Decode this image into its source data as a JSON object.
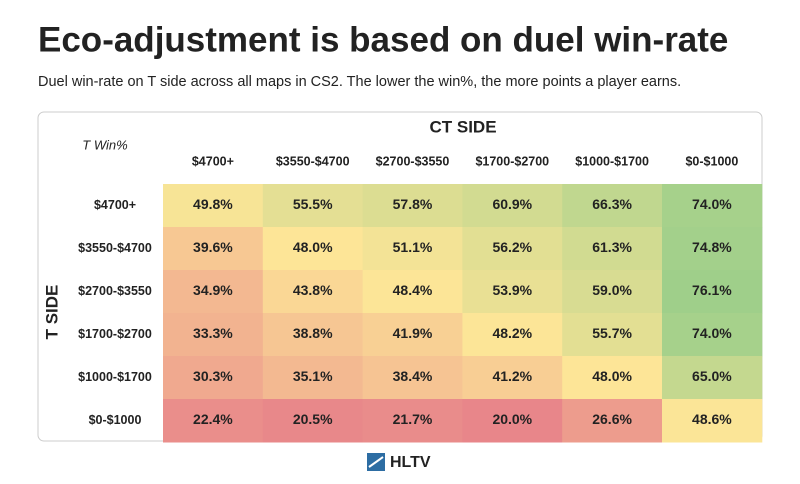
{
  "chart_data": {
    "type": "heatmap",
    "title": "Eco-adjustment is based on duel win-rate",
    "subtitle": "Duel win-rate on T side across all maps in CS2. The lower the win%, the more points a player earns.",
    "x_axis_label": "CT SIDE",
    "y_axis_label": "T SIDE",
    "corner_label": "T Win%",
    "footer": "HLTV",
    "x_categories": [
      "$4700+",
      "$3550-$4700",
      "$2700-$3550",
      "$1700-$2700",
      "$1000-$1700",
      "$0-$1000"
    ],
    "y_categories": [
      "$4700+",
      "$3550-$4700",
      "$2700-$3550",
      "$1700-$2700",
      "$1000-$1700",
      "$0-$1000"
    ],
    "values": [
      [
        49.8,
        55.5,
        57.8,
        60.9,
        66.3,
        74.0
      ],
      [
        39.6,
        48.0,
        51.1,
        56.2,
        61.3,
        74.8
      ],
      [
        34.9,
        43.8,
        48.4,
        53.9,
        59.0,
        76.1
      ],
      [
        33.3,
        38.8,
        41.9,
        48.2,
        55.7,
        74.0
      ],
      [
        30.3,
        35.1,
        38.4,
        41.2,
        48.0,
        65.0
      ],
      [
        22.4,
        20.5,
        21.7,
        20.0,
        26.6,
        48.6
      ]
    ],
    "value_labels": [
      [
        "49.8%",
        "55.5%",
        "57.8%",
        "60.9%",
        "66.3%",
        "74.0%"
      ],
      [
        "39.6%",
        "48.0%",
        "51.1%",
        "56.2%",
        "61.3%",
        "74.8%"
      ],
      [
        "34.9%",
        "43.8%",
        "48.4%",
        "53.9%",
        "59.0%",
        "76.1%"
      ],
      [
        "33.3%",
        "38.8%",
        "41.9%",
        "48.2%",
        "55.7%",
        "74.0%"
      ],
      [
        "30.3%",
        "35.1%",
        "38.4%",
        "41.2%",
        "48.0%",
        "65.0%"
      ],
      [
        "22.4%",
        "20.5%",
        "21.7%",
        "20.0%",
        "26.6%",
        "48.6%"
      ]
    ],
    "colorscale": [
      "#e8868a",
      "#fde597",
      "#9fcf8a"
    ]
  }
}
